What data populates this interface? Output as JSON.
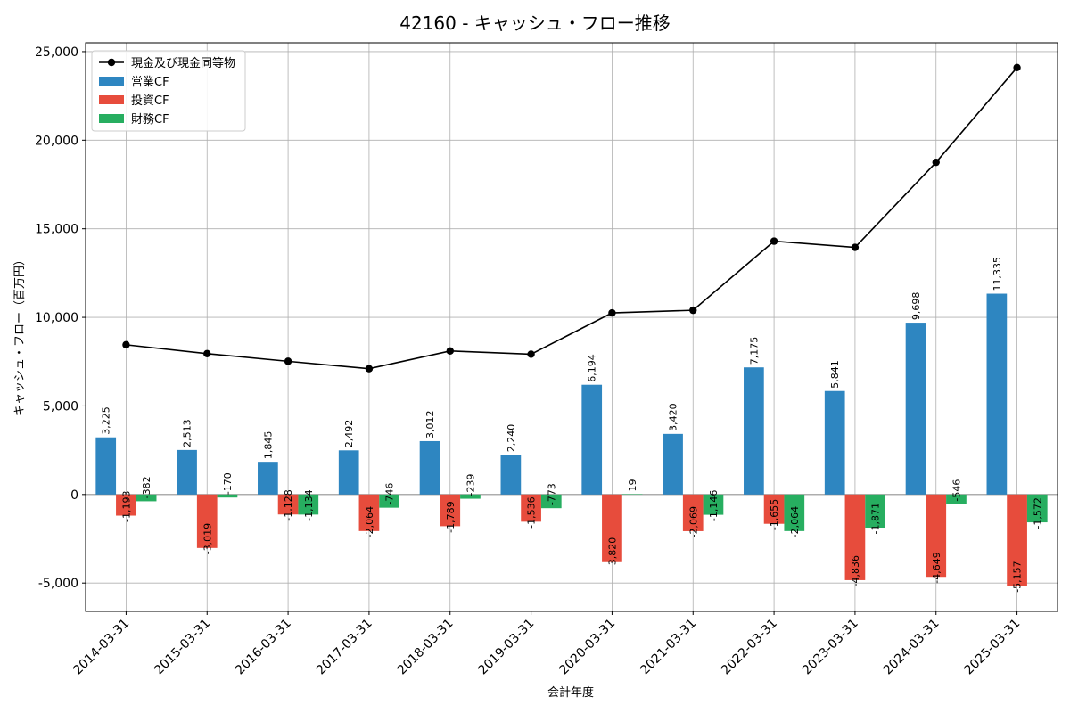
{
  "chart_data": {
    "type": "bar",
    "title": "42160 - キャッシュ・フロー推移",
    "xlabel": "会計年度",
    "ylabel": "キャッシュ・フロー（百万円）",
    "ylim": [
      -6600,
      25500
    ],
    "yticks": [
      -5000,
      0,
      5000,
      10000,
      15000,
      20000,
      25000
    ],
    "ytick_labels": [
      "-5,000",
      "0",
      "5,000",
      "10,000",
      "15,000",
      "20,000",
      "25,000"
    ],
    "grid": true,
    "legend_position": "top-left",
    "categories": [
      "2014-03-31",
      "2015-03-31",
      "2016-03-31",
      "2017-03-31",
      "2018-03-31",
      "2019-03-31",
      "2020-03-31",
      "2021-03-31",
      "2022-03-31",
      "2023-03-31",
      "2024-03-31",
      "2025-03-31"
    ],
    "series": [
      {
        "name": "営業CF",
        "kind": "bar",
        "color": "#2e86c1",
        "values": [
          3225,
          2513,
          1845,
          2492,
          3012,
          2240,
          6194,
          3420,
          7175,
          5841,
          9698,
          11335
        ],
        "labels": [
          "3,225",
          "2,513",
          "1,845",
          "2,492",
          "3,012",
          "2,240",
          "6,194",
          "3,420",
          "7,175",
          "5,841",
          "9,698",
          "11,335"
        ]
      },
      {
        "name": "投資CF",
        "kind": "bar",
        "color": "#e74c3c",
        "values": [
          -1193,
          -3019,
          -1128,
          -2064,
          -1789,
          -1536,
          -3820,
          -2069,
          -1655,
          -4836,
          -4649,
          -5157
        ],
        "labels": [
          "-1,193",
          "-3,019",
          "-1,128",
          "-2,064",
          "-1,789",
          "-1,536",
          "-3,820",
          "-2,069",
          "-1,655",
          "-4,836",
          "-4,649",
          "-5,157"
        ]
      },
      {
        "name": "財務CF",
        "kind": "bar",
        "color": "#27ae60",
        "values": [
          -382,
          -170,
          -1134,
          -746,
          -239,
          -773,
          19,
          -1146,
          -2064,
          -1871,
          -546,
          -1572
        ],
        "labels": [
          "-382",
          "-170",
          "-1,134",
          "-746",
          "-239",
          "-773",
          "19",
          "-1,146",
          "-2,064",
          "-1,871",
          "-546",
          "-1,572"
        ]
      },
      {
        "name": "現金及び現金同等物",
        "kind": "line",
        "color": "#000000",
        "values": [
          8450,
          7950,
          7520,
          7100,
          8100,
          7920,
          10250,
          10400,
          14300,
          13950,
          18750,
          24100
        ]
      }
    ]
  }
}
